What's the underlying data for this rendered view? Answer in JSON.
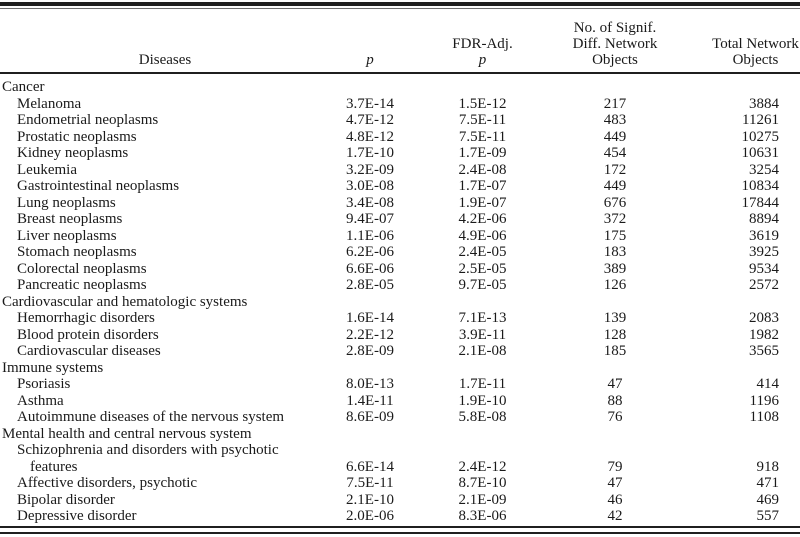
{
  "colors": {
    "text": "#1a1a1a",
    "background": "#ffffff",
    "rule": "#1f1f1f"
  },
  "table": {
    "headers": {
      "diseases": "Diseases",
      "p": "p",
      "fdr_line1": "FDR-Adj.",
      "fdr_line2": "p",
      "signif_line1": "No. of Signif.",
      "signif_line2": "Diff. Network",
      "signif_line3": "Objects",
      "total_line1": "Total Network",
      "total_line2": "Objects"
    },
    "groups": [
      {
        "label": "Cancer",
        "rows": [
          {
            "name": "Melanoma",
            "p": "3.7E-14",
            "fdr": "1.5E-12",
            "signif": "217",
            "total": "3884"
          },
          {
            "name": "Endometrial neoplasms",
            "p": "4.7E-12",
            "fdr": "7.5E-11",
            "signif": "483",
            "total": "11261"
          },
          {
            "name": "Prostatic neoplasms",
            "p": "4.8E-12",
            "fdr": "7.5E-11",
            "signif": "449",
            "total": "10275"
          },
          {
            "name": "Kidney neoplasms",
            "p": "1.7E-10",
            "fdr": "1.7E-09",
            "signif": "454",
            "total": "10631"
          },
          {
            "name": "Leukemia",
            "p": "3.2E-09",
            "fdr": "2.4E-08",
            "signif": "172",
            "total": "3254"
          },
          {
            "name": "Gastrointestinal neoplasms",
            "p": "3.0E-08",
            "fdr": "1.7E-07",
            "signif": "449",
            "total": "10834"
          },
          {
            "name": "Lung neoplasms",
            "p": "3.4E-08",
            "fdr": "1.9E-07",
            "signif": "676",
            "total": "17844"
          },
          {
            "name": "Breast neoplasms",
            "p": "9.4E-07",
            "fdr": "4.2E-06",
            "signif": "372",
            "total": "8894"
          },
          {
            "name": "Liver neoplasms",
            "p": "1.1E-06",
            "fdr": "4.9E-06",
            "signif": "175",
            "total": "3619"
          },
          {
            "name": "Stomach neoplasms",
            "p": "6.2E-06",
            "fdr": "2.4E-05",
            "signif": "183",
            "total": "3925"
          },
          {
            "name": "Colorectal neoplasms",
            "p": "6.6E-06",
            "fdr": "2.5E-05",
            "signif": "389",
            "total": "9534"
          },
          {
            "name": "Pancreatic neoplasms",
            "p": "2.8E-05",
            "fdr": "9.7E-05",
            "signif": "126",
            "total": "2572"
          }
        ]
      },
      {
        "label": "Cardiovascular and hematologic systems",
        "rows": [
          {
            "name": "Hemorrhagic disorders",
            "p": "1.6E-14",
            "fdr": "7.1E-13",
            "signif": "139",
            "total": "2083"
          },
          {
            "name": "Blood protein disorders",
            "p": "2.2E-12",
            "fdr": "3.9E-11",
            "signif": "128",
            "total": "1982"
          },
          {
            "name": "Cardiovascular diseases",
            "p": "2.8E-09",
            "fdr": "2.1E-08",
            "signif": "185",
            "total": "3565"
          }
        ]
      },
      {
        "label": "Immune systems",
        "rows": [
          {
            "name": "Psoriasis",
            "p": "8.0E-13",
            "fdr": "1.7E-11",
            "signif": "47",
            "total": "414"
          },
          {
            "name": "Asthma",
            "p": "1.4E-11",
            "fdr": "1.9E-10",
            "signif": "88",
            "total": "1196"
          },
          {
            "name": "Autoimmune diseases of the nervous system",
            "p": "8.6E-09",
            "fdr": "5.8E-08",
            "signif": "76",
            "total": "1108"
          }
        ]
      },
      {
        "label": "Mental health and central nervous system",
        "rows": [
          {
            "name": "Schizophrenia and disorders with psychotic",
            "name2": "features",
            "p": "6.6E-14",
            "fdr": "2.4E-12",
            "signif": "79",
            "total": "918"
          },
          {
            "name": "Affective disorders, psychotic",
            "p": "7.5E-11",
            "fdr": "8.7E-10",
            "signif": "47",
            "total": "471"
          },
          {
            "name": "Bipolar disorder",
            "p": "2.1E-10",
            "fdr": "2.1E-09",
            "signif": "46",
            "total": "469"
          },
          {
            "name": "Depressive disorder",
            "p": "2.0E-06",
            "fdr": "8.3E-06",
            "signif": "42",
            "total": "557"
          }
        ]
      }
    ]
  }
}
